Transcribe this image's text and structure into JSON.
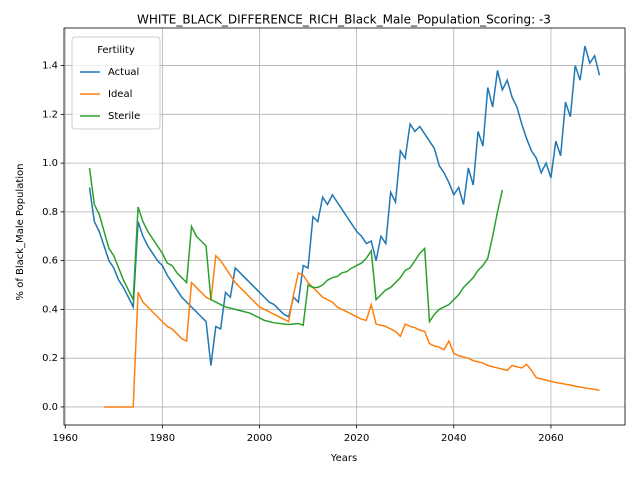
{
  "chart_data": {
    "type": "line",
    "title": "WHITE_BLACK_DIFFERENCE_RICH_Black_Male_Population_Scoring: -3",
    "xlabel": "Years",
    "ylabel": "% of Black_Male Population",
    "legend_title": "Fertility",
    "legend": "upper left",
    "grid": true,
    "x": [
      1965,
      1966,
      1967,
      1968,
      1969,
      1970,
      1971,
      1972,
      1973,
      1974,
      1975,
      1976,
      1977,
      1978,
      1979,
      1980,
      1981,
      1982,
      1983,
      1984,
      1985,
      1986,
      1987,
      1988,
      1989,
      1990,
      1991,
      1992,
      1993,
      1994,
      1995,
      1996,
      1997,
      1998,
      1999,
      2000,
      2001,
      2002,
      2003,
      2004,
      2005,
      2006,
      2007,
      2008,
      2009,
      2010,
      2011,
      2012,
      2013,
      2014,
      2015,
      2016,
      2017,
      2018,
      2019,
      2020,
      2021,
      2022,
      2023,
      2024,
      2025,
      2026,
      2027,
      2028,
      2029,
      2030,
      2031,
      2032,
      2033,
      2034,
      2035,
      2036,
      2037,
      2038,
      2039,
      2040,
      2041,
      2042,
      2043,
      2044,
      2045,
      2046,
      2047,
      2048,
      2049,
      2050,
      2051,
      2052,
      2053,
      2054,
      2055,
      2056,
      2057,
      2058,
      2059,
      2060,
      2061,
      2062,
      2063,
      2064,
      2065,
      2066,
      2067,
      2068,
      2069,
      2070
    ],
    "series": [
      {
        "name": "Actual",
        "color": "#1f77b4",
        "values": [
          0.9,
          0.76,
          0.72,
          0.66,
          0.6,
          0.57,
          0.52,
          0.49,
          0.45,
          0.41,
          0.76,
          0.7,
          0.66,
          0.63,
          0.6,
          0.58,
          0.54,
          0.51,
          0.48,
          0.45,
          0.43,
          0.41,
          0.39,
          0.37,
          0.35,
          0.17,
          0.33,
          0.32,
          0.47,
          0.45,
          0.57,
          0.55,
          0.53,
          0.51,
          0.49,
          0.47,
          0.45,
          0.43,
          0.42,
          0.4,
          0.38,
          0.37,
          0.45,
          0.43,
          0.58,
          0.57,
          0.78,
          0.76,
          0.86,
          0.83,
          0.87,
          0.84,
          0.81,
          0.78,
          0.75,
          0.72,
          0.7,
          0.67,
          0.68,
          0.6,
          0.7,
          0.67,
          0.88,
          0.84,
          1.05,
          1.02,
          1.16,
          1.13,
          1.15,
          1.12,
          1.09,
          1.06,
          0.99,
          0.96,
          0.92,
          0.87,
          0.9,
          0.83,
          0.98,
          0.91,
          1.13,
          1.07,
          1.31,
          1.23,
          1.38,
          1.3,
          1.34,
          1.27,
          1.23,
          1.16,
          1.1,
          1.05,
          1.02,
          0.96,
          1.0,
          0.94,
          1.09,
          1.03,
          1.25,
          1.19,
          1.4,
          1.34,
          1.48,
          1.41,
          1.44,
          1.36
        ]
      },
      {
        "name": "Ideal",
        "color": "#ff7f0e",
        "values": [
          null,
          null,
          null,
          0,
          0,
          0,
          0,
          0,
          0,
          0,
          0.47,
          0.43,
          0.41,
          0.39,
          0.37,
          0.35,
          0.33,
          0.32,
          0.3,
          0.28,
          0.27,
          0.51,
          0.49,
          0.47,
          0.45,
          0.44,
          0.62,
          0.6,
          0.57,
          0.54,
          0.51,
          0.49,
          0.47,
          0.45,
          0.43,
          0.41,
          0.4,
          0.39,
          0.38,
          0.37,
          0.36,
          0.35,
          0.46,
          0.55,
          0.54,
          0.51,
          0.49,
          0.47,
          0.45,
          0.44,
          0.43,
          0.41,
          0.4,
          0.39,
          0.38,
          0.37,
          0.36,
          0.355,
          0.42,
          0.34,
          0.335,
          0.33,
          0.32,
          0.31,
          0.29,
          0.34,
          0.33,
          0.325,
          0.315,
          0.31,
          0.26,
          0.25,
          0.245,
          0.235,
          0.27,
          0.22,
          0.21,
          0.205,
          0.2,
          0.19,
          0.185,
          0.18,
          0.17,
          0.165,
          0.16,
          0.155,
          0.15,
          0.17,
          0.165,
          0.16,
          0.175,
          0.15,
          0.12,
          0.115,
          0.11,
          0.105,
          0.1,
          0.097,
          0.093,
          0.09,
          0.085,
          0.082,
          0.078,
          0.075,
          0.072,
          0.068
        ]
      },
      {
        "name": "Sterile",
        "color": "#2ca02c",
        "values": [
          0.98,
          0.83,
          0.79,
          0.72,
          0.65,
          0.62,
          0.57,
          0.52,
          0.48,
          0.44,
          0.82,
          0.76,
          0.72,
          0.69,
          0.66,
          0.63,
          0.59,
          0.58,
          0.55,
          0.53,
          0.51,
          0.74,
          0.7,
          0.68,
          0.66,
          0.44,
          0.43,
          0.42,
          0.41,
          0.405,
          0.4,
          0.395,
          0.39,
          0.385,
          0.375,
          0.365,
          0.355,
          0.35,
          0.345,
          0.343,
          0.34,
          0.338,
          0.34,
          0.342,
          0.335,
          0.5,
          0.49,
          0.49,
          0.5,
          0.52,
          0.53,
          0.535,
          0.55,
          0.555,
          0.57,
          0.58,
          0.59,
          0.61,
          0.64,
          0.44,
          0.46,
          0.48,
          0.49,
          0.51,
          0.53,
          0.56,
          0.57,
          0.6,
          0.63,
          0.65,
          0.35,
          0.38,
          0.4,
          0.41,
          0.42,
          0.44,
          0.46,
          0.49,
          0.51,
          0.53,
          0.56,
          0.58,
          0.61,
          0.7,
          0.8,
          0.89,
          null,
          null,
          null,
          null,
          null,
          null,
          null,
          null,
          null,
          null,
          null,
          null,
          null,
          null,
          null,
          null,
          null,
          null,
          null,
          null
        ]
      }
    ],
    "xlim": [
      1959.75,
      2075.25
    ],
    "xticks": [
      1960,
      1980,
      2000,
      2020,
      2040,
      2060
    ],
    "ylim": [
      -0.074,
      1.554
    ],
    "yticks": [
      {
        "value": 0,
        "label": "0.0"
      },
      0.2,
      0.4,
      0.6,
      0.8,
      {
        "value": 1,
        "label": "1.0"
      },
      1.2,
      1.4
    ]
  }
}
